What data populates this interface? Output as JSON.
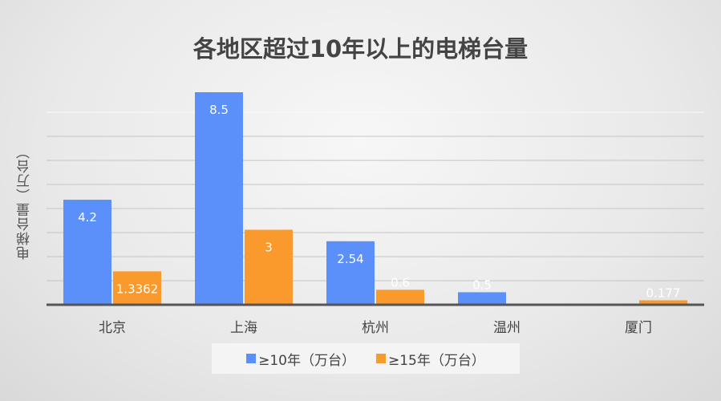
{
  "chart_data": {
    "type": "bar",
    "title": "各地区超过10年以上的电梯台量",
    "ylabel": "电梯台量（万台）",
    "xlabel": "",
    "categories": [
      "北京",
      "上海",
      "杭州",
      "温州",
      "厦门"
    ],
    "series": [
      {
        "name": "≥10年（万台）",
        "color": "#5b8ff9",
        "values": [
          4.2,
          8.5,
          2.54,
          0.5,
          null
        ],
        "labels": [
          "4.2",
          "8.5",
          "2.54",
          "0.5",
          ""
        ]
      },
      {
        "name": "≥15年（万台）",
        "color": "#fa9a2c",
        "values": [
          1.3362,
          3,
          0.6,
          null,
          0.177
        ],
        "labels": [
          "1.3362",
          "3",
          "0.6",
          "",
          "0.177"
        ]
      }
    ],
    "ylim": [
      0,
      8.5
    ],
    "grid": true,
    "legend": "bottom"
  }
}
